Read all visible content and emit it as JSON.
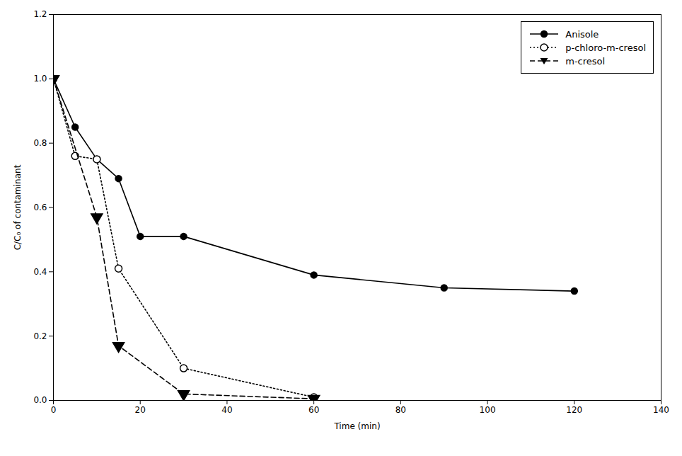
{
  "chart_data": {
    "type": "line",
    "xlabel": "Time (min)",
    "ylabel": "C/C₀ of contaminant",
    "xlim": [
      0,
      140
    ],
    "ylim": [
      0,
      1.2
    ],
    "xticks": [
      0,
      20,
      40,
      60,
      80,
      100,
      120,
      140
    ],
    "yticks": [
      {
        "value": 0.0,
        "label": "0.0"
      },
      0.2,
      0.4,
      0.6,
      0.8,
      {
        "value": 1.0,
        "label": "1.0"
      },
      1.2
    ],
    "grid": false,
    "legend": "upper right",
    "series": [
      {
        "name": "Anisole",
        "color": "#000000",
        "line_style": "solid",
        "marker": "circle",
        "x": [
          0,
          5,
          10,
          15,
          20,
          30,
          60,
          90,
          120
        ],
        "values": [
          1.0,
          0.85,
          0.75,
          0.69,
          0.51,
          0.51,
          0.39,
          0.35,
          0.34
        ]
      },
      {
        "name": "p-chloro-m-cresol",
        "color": "#000000",
        "line_style": "dotted",
        "marker": "open_circle",
        "x": [
          0,
          5,
          10,
          15,
          30,
          60
        ],
        "values": [
          1.0,
          0.76,
          0.75,
          0.41,
          0.1,
          0.01
        ]
      },
      {
        "name": "m-cresol",
        "color": "#000000",
        "line_style": "dashed",
        "marker": "triangle_down",
        "x": [
          0,
          10,
          15,
          30,
          60
        ],
        "values": [
          1.0,
          0.57,
          0.17,
          0.02,
          0.005
        ]
      }
    ]
  }
}
